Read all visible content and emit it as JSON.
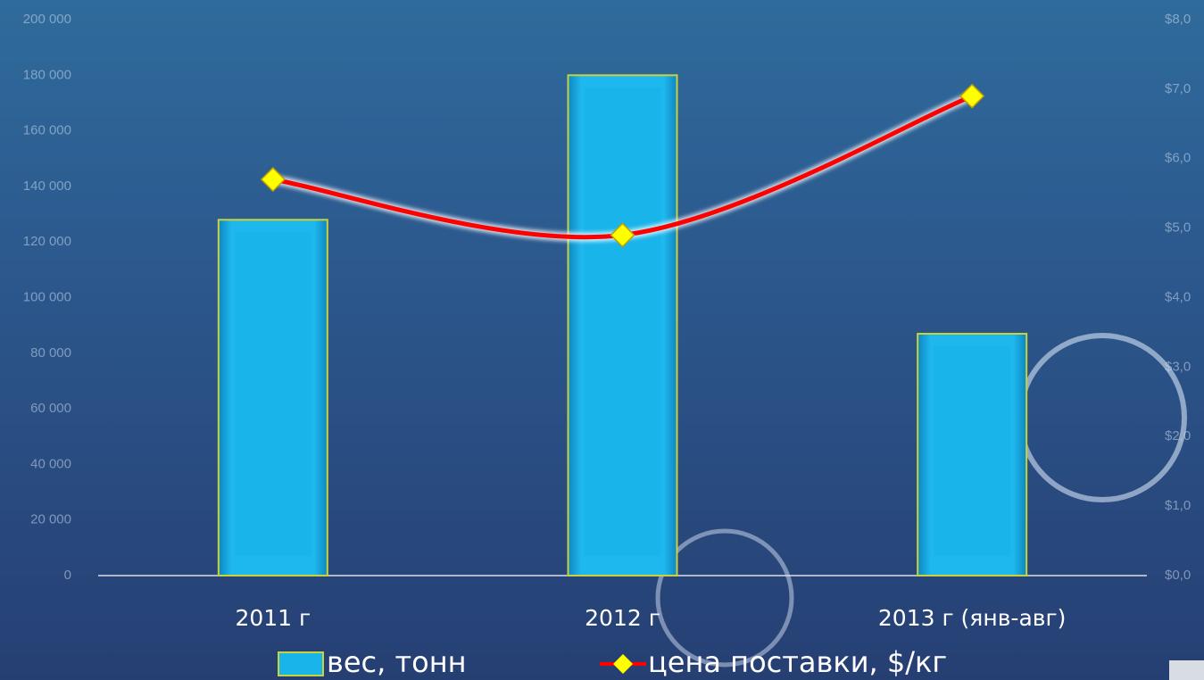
{
  "chart_data": {
    "type": "bar-line",
    "categories": [
      "2011 г",
      "2012 г",
      "2013 г (янв-авг)"
    ],
    "series": [
      {
        "name": "вес, тонн",
        "type": "bar",
        "color": "#18b4ea",
        "values": [
          128000,
          180000,
          87000
        ]
      },
      {
        "name": "цена поставки, $/кг",
        "type": "line",
        "axis": "y2",
        "color": "#ff0000",
        "marker_color": "#ffff00",
        "values": [
          5.7,
          4.9,
          6.9
        ]
      }
    ],
    "ylim": [
      0,
      200000
    ],
    "yticks": [
      0,
      {
        "value": 20000,
        "label": "20 000"
      },
      {
        "value": 40000,
        "label": "40 000"
      },
      {
        "value": 60000,
        "label": "60 000"
      },
      {
        "value": 80000,
        "label": "80 000"
      },
      {
        "value": 100000,
        "label": "100 000"
      },
      {
        "value": 120000,
        "label": "120 000"
      },
      {
        "value": 140000,
        "label": "140 000"
      },
      {
        "value": 160000,
        "label": "160 000"
      },
      {
        "value": 180000,
        "label": "180 000"
      },
      {
        "value": 200000,
        "label": "200 000"
      }
    ],
    "y2lim": [
      0,
      8
    ],
    "y2ticks": [
      {
        "value": 0,
        "label": "$0,0"
      },
      {
        "value": 1,
        "label": "$1,0"
      },
      {
        "value": 2,
        "label": "$2,0"
      },
      {
        "value": 3,
        "label": "$3,0"
      },
      {
        "value": 4,
        "label": "$4,0"
      },
      {
        "value": 5,
        "label": "$5,0"
      },
      {
        "value": 6,
        "label": "$6,0"
      },
      {
        "value": 7,
        "label": "$7,0"
      },
      {
        "value": 8,
        "label": "$8,0"
      }
    ],
    "legend": "bottom"
  }
}
